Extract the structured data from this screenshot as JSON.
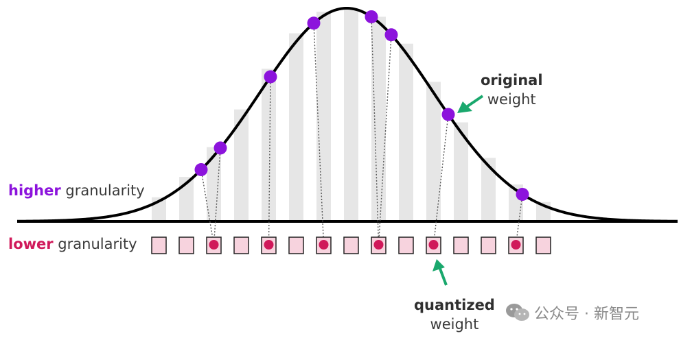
{
  "labels": {
    "higher_strong": "higher",
    "higher_rest": " granularity",
    "lower_strong": "lower",
    "lower_rest": " granularity",
    "original_strong": "original",
    "original_rest": "weight",
    "quantized_strong": "quantized",
    "quantized_rest": "weight"
  },
  "watermark": {
    "text": "公众号 · 新智元",
    "icon": "wechat-icon"
  },
  "colors": {
    "curve": "#000000",
    "bands": "#e6e6e6",
    "original_point": "#8c13dc",
    "quantized_point": "#d0195a",
    "bin_fill": "#f7d3de",
    "bin_stroke": "#222222",
    "arrow": "#1aa86d",
    "higher_text": "#8c13dc",
    "lower_text": "#d0195a"
  },
  "bins_count": 15,
  "mapping": [
    {
      "bin": 2,
      "orig": 0
    },
    {
      "bin": 2,
      "orig": 1
    },
    {
      "bin": 4,
      "orig": 2
    },
    {
      "bin": 6,
      "orig": 3
    },
    {
      "bin": 8,
      "orig": 4
    },
    {
      "bin": 8,
      "orig": 5
    },
    {
      "bin": 10,
      "orig": 6
    },
    {
      "bin": 13,
      "orig": 7
    }
  ]
}
